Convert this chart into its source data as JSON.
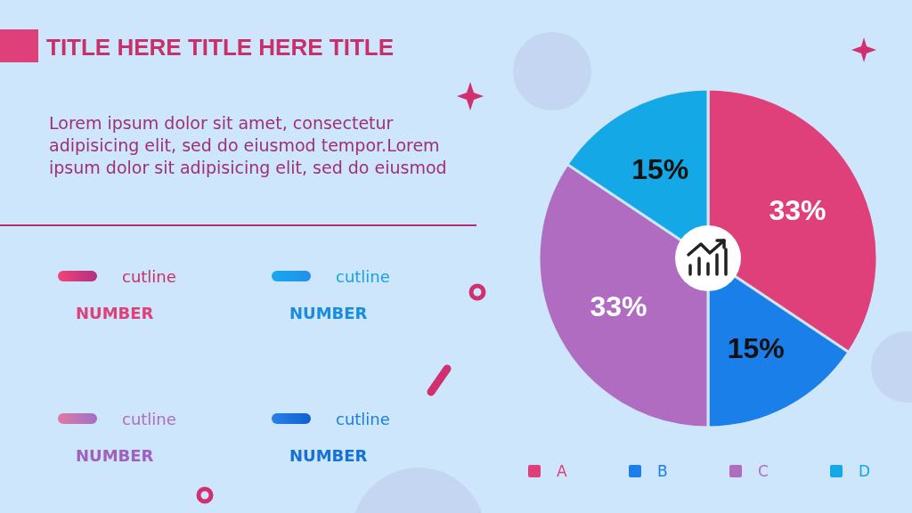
{
  "chart_data": {
    "type": "pie",
    "title": "TITLE  HERE TITLE  HERE TITLE",
    "categories": [
      "A",
      "B",
      "C",
      "D"
    ],
    "values": [
      33,
      15,
      33,
      15
    ],
    "colors": [
      "#e0407a",
      "#1a7fe8",
      "#b06cc0",
      "#14a8e6"
    ],
    "value_labels": [
      "33%",
      "15%",
      "33%",
      "15%"
    ],
    "legend": "bottom",
    "annotations": [
      "Lorem ipsum dolor sit amet, consectetur adipisicing elit, sed do eiusmod tempor.Lorem ipsum dolor sit adipisicing elit, sed do eiusmod",
      "cutline",
      "NUMBER",
      "cutline",
      "NUMBER",
      "cutline",
      "NUMBER",
      "cutline",
      "NUMBER"
    ]
  }
}
